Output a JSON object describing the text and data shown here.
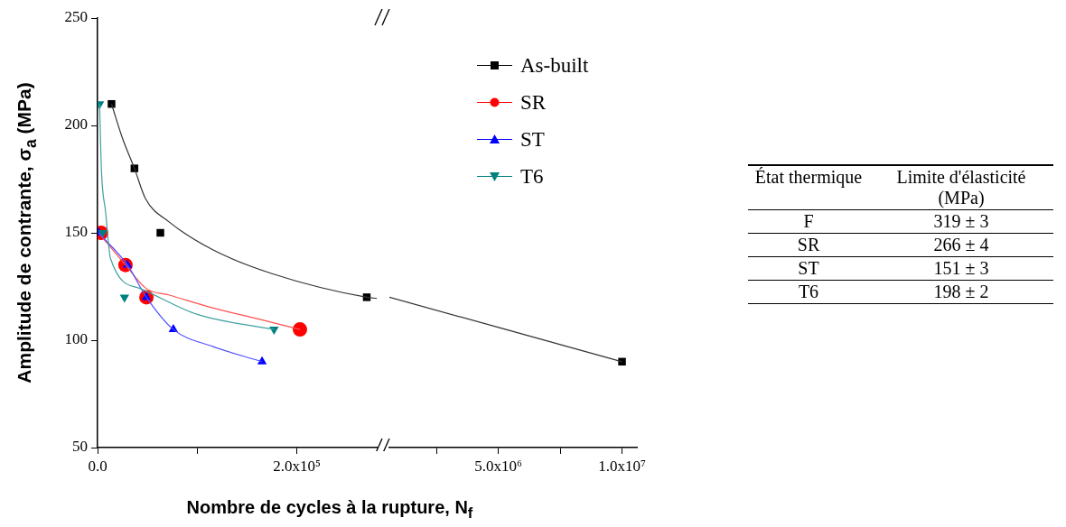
{
  "chart_data": [
    {
      "type": "scatter",
      "ylabel": "Amplitude de contrante, σ$_{a}$ (MPa)",
      "xlabel": "Nombre de cycles à la rupture, N$_{f}$",
      "xlim": [
        0,
        280000
      ],
      "xticks": [
        {
          "value": 0,
          "label": "0.0"
        },
        {
          "value": 100000,
          "label": null
        },
        {
          "value": 200000,
          "label": "2.0x10⁵"
        }
      ],
      "ylim": [
        50,
        250
      ],
      "yticks": [
        50,
        100,
        150,
        200,
        250
      ],
      "legend": "top right",
      "series": [
        {
          "name": "As-built",
          "type": "scatter",
          "marker": "square",
          "color": "#000000",
          "x": [
            14000,
            37000,
            63000,
            270000
          ],
          "values": [
            210,
            180,
            150,
            120
          ]
        },
        {
          "name": "SR",
          "type": "scatter",
          "marker": "circle",
          "color": "#ff0000",
          "x": [
            3500,
            28000,
            49000,
            203000
          ],
          "values": [
            150,
            135,
            120,
            105
          ]
        },
        {
          "name": "ST",
          "type": "scatter",
          "marker": "triangle",
          "color": "#0000ff",
          "x": [
            1000,
            30000,
            49000,
            76000,
            165000
          ],
          "values": [
            150,
            135,
            120,
            105,
            90
          ]
        },
        {
          "name": "T6",
          "type": "scatter",
          "marker": "triangle-down",
          "color": "#008080",
          "x": [
            2000,
            5000,
            27000,
            177000
          ],
          "values": [
            210,
            150,
            120,
            105
          ]
        },
        {
          "type": "line",
          "marker": "none",
          "color": "#333333",
          "x": [
            14000,
            25000,
            37000,
            48000,
            72000,
            116000,
            175000,
            270000,
            280000
          ],
          "values": [
            210,
            194,
            180,
            166,
            155,
            142,
            131,
            120,
            119.5
          ]
        },
        {
          "type": "line",
          "marker": "none",
          "color": "#ff5050",
          "x": [
            1000,
            28000,
            49000,
            72000,
            116000,
            160000,
            203000
          ],
          "values": [
            150,
            135,
            124,
            121,
            115,
            110,
            105
          ]
        },
        {
          "type": "line",
          "marker": "none",
          "color": "#5050ff",
          "x": [
            1000,
            30000,
            49000,
            76000,
            116000,
            165000
          ],
          "values": [
            150,
            135,
            120,
            105,
            97,
            90
          ]
        },
        {
          "type": "line",
          "marker": "none",
          "color": "#40a0a0",
          "x": [
            2000,
            4000,
            8000,
            13000,
            43000,
            100000,
            177000
          ],
          "values": [
            210,
            178,
            160,
            138,
            124,
            112,
            105
          ]
        }
      ]
    },
    {
      "type": "scatter",
      "xlim": [
        600000,
        10600000
      ],
      "xticks": [
        {
          "value": 2500000,
          "label": null
        },
        {
          "value": 5000000,
          "label": "5.0x10⁶"
        },
        {
          "value": 7500000,
          "label": null
        },
        {
          "value": 10000000,
          "label": "1.0x10⁷"
        }
      ],
      "ylim": [
        50,
        250
      ],
      "tick_labels": "x",
      "series": [
        {
          "type": "scatter",
          "marker": "square",
          "color": "#000000",
          "x": [
            10000000
          ],
          "values": [
            90
          ]
        },
        {
          "type": "line",
          "marker": "none",
          "color": "#333333",
          "x": [
            600000,
            10000000
          ],
          "values": [
            120,
            90
          ]
        }
      ]
    },
    {
      "type": "other",
      "annotations": [
        "État thermique",
        "Limite d'élasticité (MPa)"
      ],
      "categories": [
        "F",
        "SR",
        "ST",
        "T6"
      ],
      "value_labels": [
        "319 ± 3",
        "266 ± 4",
        "151 ± 3",
        "198 ± 2"
      ]
    }
  ]
}
